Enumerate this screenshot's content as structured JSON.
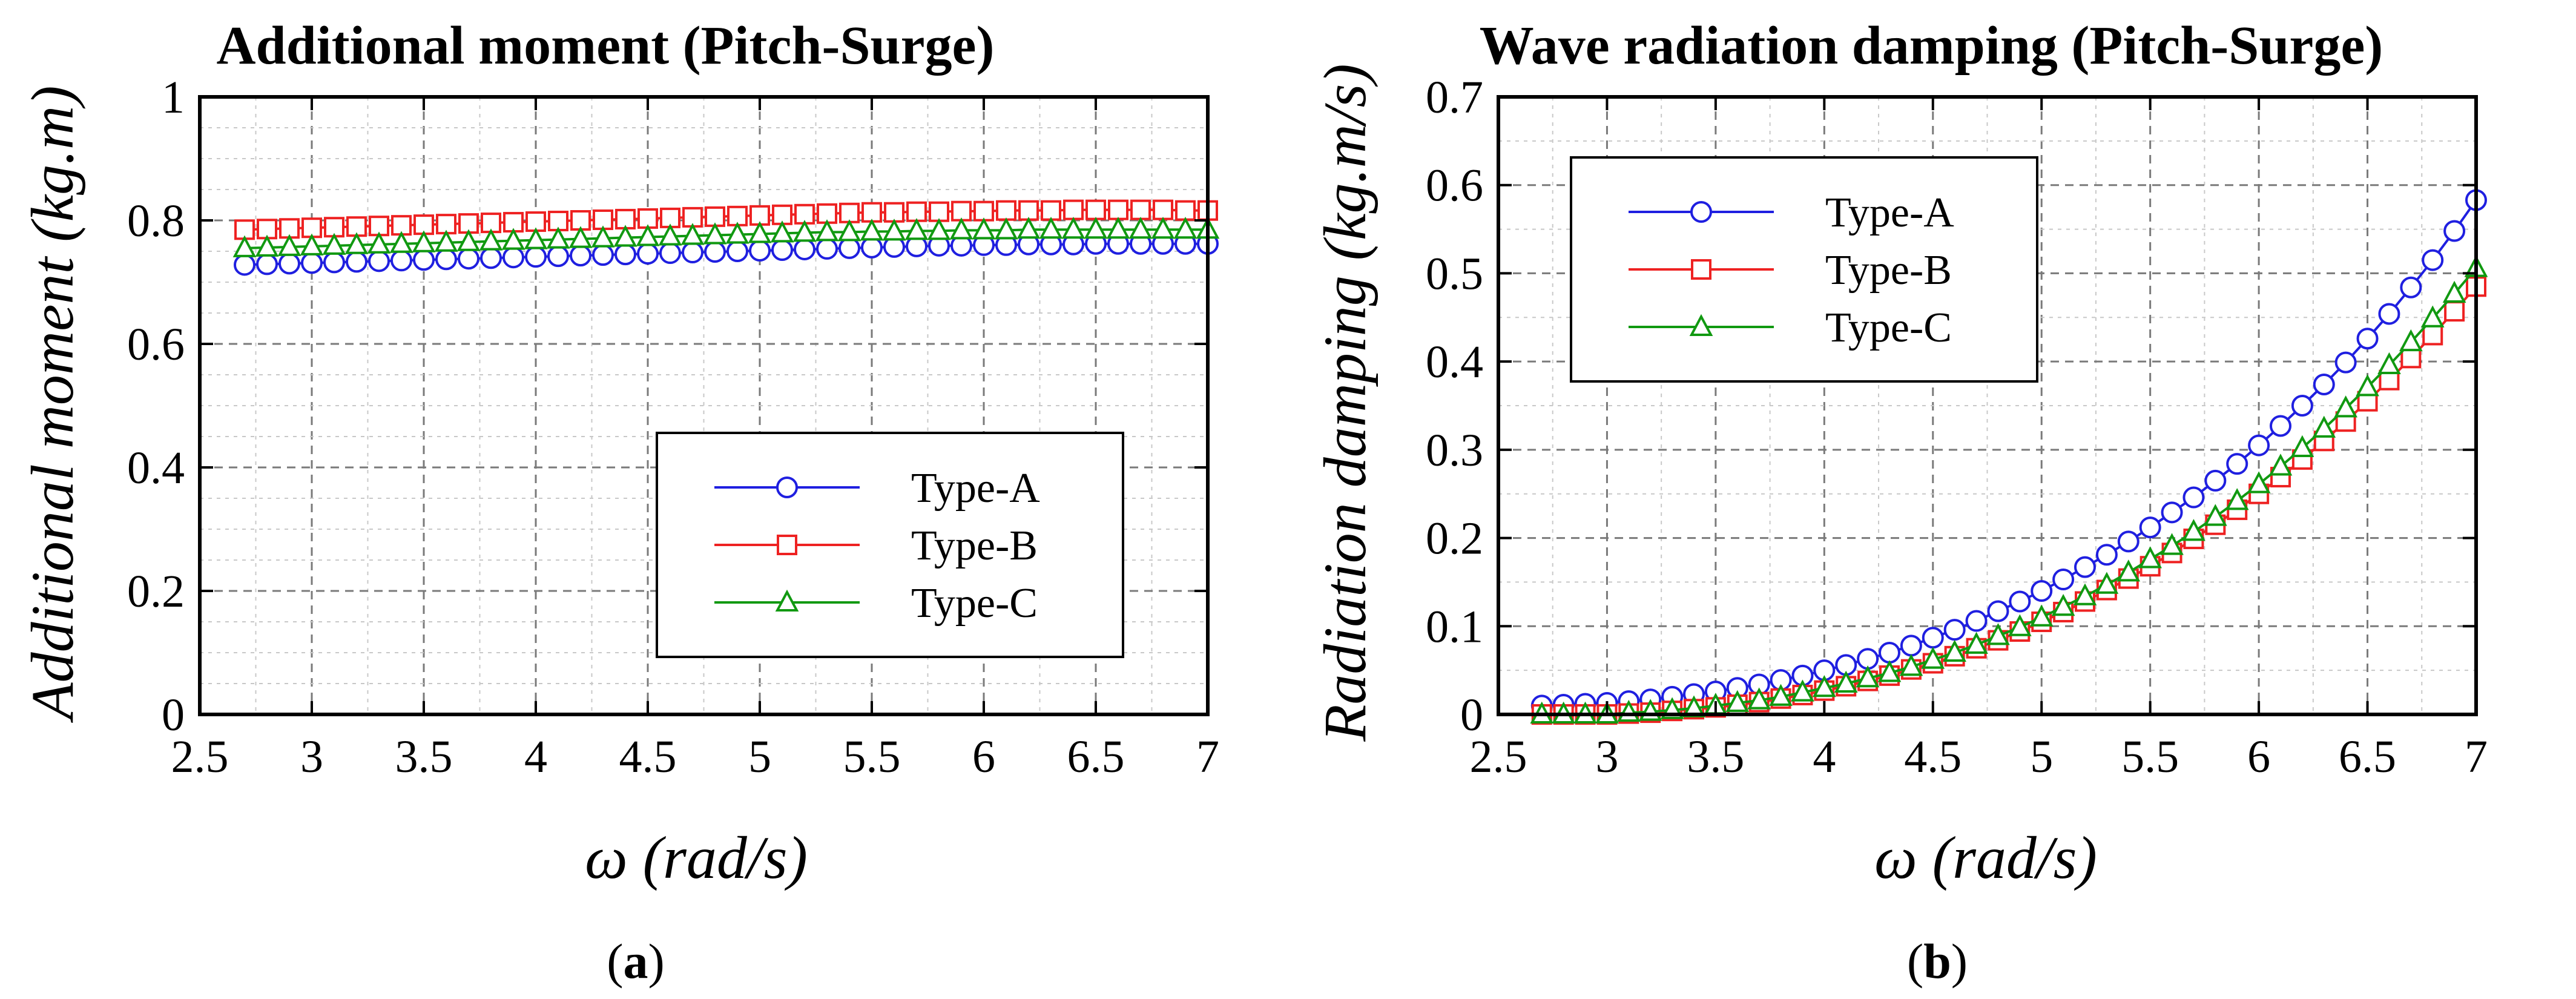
{
  "colors": {
    "type_a": "#1f1fe0",
    "type_b": "#ee2222",
    "type_c": "#119911"
  },
  "panels": [
    {
      "caption": "a"
    },
    {
      "caption": "b"
    }
  ],
  "chart_data": [
    {
      "type": "line",
      "title": "Additional moment (Pitch-Surge)",
      "xlabel": "ω (rad/s)",
      "ylabel": "Additional moment (kg.m)",
      "xlim": [
        2.5,
        7
      ],
      "ylim": [
        0,
        1
      ],
      "xticks": [
        2.5,
        3,
        3.5,
        4,
        4.5,
        5,
        5.5,
        6,
        6.5,
        7
      ],
      "xtick_labels": [
        "2.5",
        "3",
        "3.5",
        "4",
        "4.5",
        "5",
        "5.5",
        "6",
        "6.5",
        "7"
      ],
      "yticks": [
        0,
        0.2,
        0.4,
        0.6,
        0.8,
        1
      ],
      "ytick_labels": [
        "0",
        "0.2",
        "0.4",
        "0.6",
        "0.8",
        "1"
      ],
      "legend_position": "lower-right",
      "x": [
        2.7,
        2.8,
        2.9,
        3.0,
        3.1,
        3.2,
        3.3,
        3.4,
        3.5,
        3.6,
        3.7,
        3.8,
        3.9,
        4.0,
        4.1,
        4.2,
        4.3,
        4.4,
        4.5,
        4.6,
        4.7,
        4.8,
        4.9,
        5.0,
        5.1,
        5.2,
        5.3,
        5.4,
        5.5,
        5.6,
        5.7,
        5.8,
        5.9,
        6.0,
        6.1,
        6.2,
        6.3,
        6.4,
        6.5,
        6.6,
        6.7,
        6.8,
        6.9,
        7.0
      ],
      "series": [
        {
          "name": "Type-A",
          "marker": "circle",
          "values": [
            0.728,
            0.729,
            0.73,
            0.731,
            0.732,
            0.733,
            0.734,
            0.735,
            0.736,
            0.737,
            0.738,
            0.739,
            0.74,
            0.741,
            0.742,
            0.743,
            0.744,
            0.745,
            0.746,
            0.747,
            0.748,
            0.749,
            0.75,
            0.751,
            0.752,
            0.753,
            0.754,
            0.755,
            0.756,
            0.757,
            0.758,
            0.759,
            0.759,
            0.76,
            0.76,
            0.761,
            0.761,
            0.761,
            0.762,
            0.762,
            0.762,
            0.762,
            0.762,
            0.762
          ]
        },
        {
          "name": "Type-B",
          "marker": "square",
          "values": [
            0.785,
            0.786,
            0.787,
            0.788,
            0.789,
            0.79,
            0.791,
            0.792,
            0.793,
            0.794,
            0.795,
            0.796,
            0.797,
            0.798,
            0.799,
            0.8,
            0.801,
            0.802,
            0.803,
            0.804,
            0.805,
            0.806,
            0.807,
            0.808,
            0.809,
            0.81,
            0.811,
            0.812,
            0.813,
            0.813,
            0.814,
            0.814,
            0.815,
            0.815,
            0.816,
            0.816,
            0.816,
            0.817,
            0.817,
            0.817,
            0.817,
            0.817,
            0.816,
            0.816
          ]
        },
        {
          "name": "Type-C",
          "marker": "triangle",
          "values": [
            0.755,
            0.756,
            0.757,
            0.758,
            0.759,
            0.76,
            0.761,
            0.762,
            0.763,
            0.764,
            0.765,
            0.766,
            0.767,
            0.768,
            0.769,
            0.77,
            0.771,
            0.772,
            0.773,
            0.774,
            0.775,
            0.776,
            0.777,
            0.778,
            0.779,
            0.78,
            0.781,
            0.781,
            0.782,
            0.782,
            0.783,
            0.783,
            0.784,
            0.784,
            0.784,
            0.785,
            0.785,
            0.785,
            0.785,
            0.785,
            0.785,
            0.785,
            0.785,
            0.785
          ]
        }
      ]
    },
    {
      "type": "line",
      "title": "Wave radiation damping (Pitch-Surge)",
      "xlabel": "ω (rad/s)",
      "ylabel": "Radiation damping (kg.m/s)",
      "xlim": [
        2.5,
        7
      ],
      "ylim": [
        0,
        0.7
      ],
      "xticks": [
        2.5,
        3,
        3.5,
        4,
        4.5,
        5,
        5.5,
        6,
        6.5,
        7
      ],
      "xtick_labels": [
        "2.5",
        "3",
        "3.5",
        "4",
        "4.5",
        "5",
        "5.5",
        "6",
        "6.5",
        "7"
      ],
      "yticks": [
        0,
        0.1,
        0.2,
        0.3,
        0.4,
        0.5,
        0.6,
        0.7
      ],
      "ytick_labels": [
        "0",
        "0.1",
        "0.2",
        "0.3",
        "0.4",
        "0.5",
        "0.6",
        "0.7"
      ],
      "legend_position": "top-left",
      "x": [
        2.7,
        2.8,
        2.9,
        3.0,
        3.1,
        3.2,
        3.3,
        3.4,
        3.5,
        3.6,
        3.7,
        3.8,
        3.9,
        4.0,
        4.1,
        4.2,
        4.3,
        4.4,
        4.5,
        4.6,
        4.7,
        4.8,
        4.9,
        5.0,
        5.1,
        5.2,
        5.3,
        5.4,
        5.5,
        5.6,
        5.7,
        5.8,
        5.9,
        6.0,
        6.1,
        6.2,
        6.3,
        6.4,
        6.5,
        6.6,
        6.7,
        6.8,
        6.9,
        7.0
      ],
      "series": [
        {
          "name": "Type-A",
          "marker": "circle",
          "values": [
            0.01,
            0.011,
            0.012,
            0.013,
            0.015,
            0.017,
            0.02,
            0.023,
            0.026,
            0.03,
            0.034,
            0.039,
            0.044,
            0.05,
            0.056,
            0.063,
            0.07,
            0.078,
            0.087,
            0.096,
            0.106,
            0.117,
            0.128,
            0.14,
            0.153,
            0.167,
            0.181,
            0.196,
            0.212,
            0.229,
            0.246,
            0.265,
            0.284,
            0.305,
            0.327,
            0.35,
            0.374,
            0.399,
            0.426,
            0.454,
            0.484,
            0.515,
            0.548,
            0.583
          ]
        },
        {
          "name": "Type-B",
          "marker": "square",
          "values": [
            0.0,
            0.0,
            0.0,
            0.0,
            0.001,
            0.002,
            0.004,
            0.006,
            0.008,
            0.011,
            0.014,
            0.018,
            0.022,
            0.027,
            0.032,
            0.038,
            0.044,
            0.051,
            0.058,
            0.066,
            0.075,
            0.084,
            0.094,
            0.105,
            0.116,
            0.128,
            0.141,
            0.154,
            0.168,
            0.183,
            0.199,
            0.215,
            0.232,
            0.25,
            0.269,
            0.289,
            0.31,
            0.332,
            0.355,
            0.379,
            0.404,
            0.43,
            0.457,
            0.485
          ]
        },
        {
          "name": "Type-C",
          "marker": "triangle",
          "values": [
            0.0,
            0.0,
            0.0,
            0.0,
            0.002,
            0.003,
            0.005,
            0.007,
            0.01,
            0.013,
            0.016,
            0.02,
            0.025,
            0.03,
            0.035,
            0.041,
            0.047,
            0.054,
            0.062,
            0.07,
            0.079,
            0.089,
            0.099,
            0.11,
            0.122,
            0.134,
            0.147,
            0.161,
            0.176,
            0.191,
            0.207,
            0.224,
            0.242,
            0.261,
            0.281,
            0.302,
            0.324,
            0.347,
            0.371,
            0.396,
            0.422,
            0.449,
            0.477,
            0.506
          ]
        }
      ]
    }
  ]
}
